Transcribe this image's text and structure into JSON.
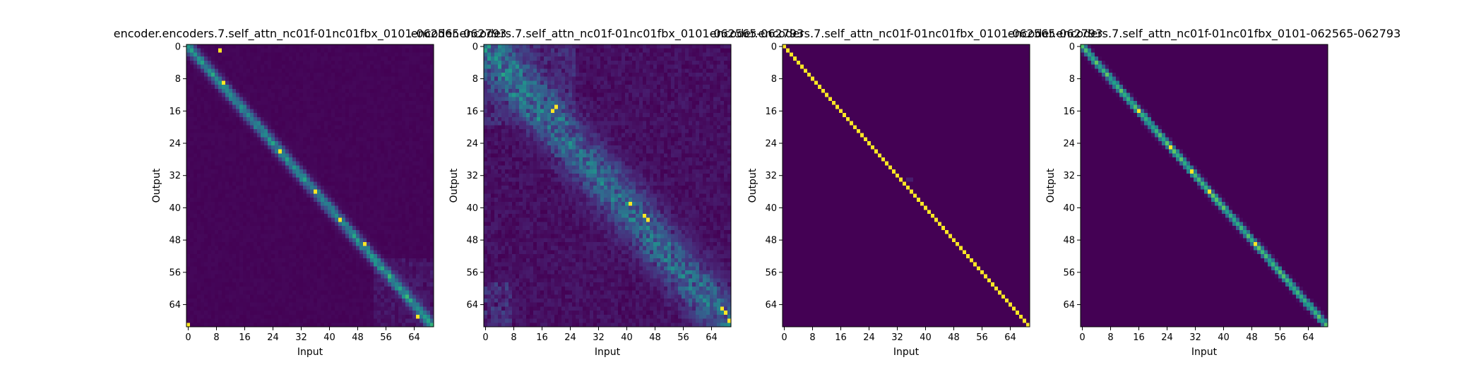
{
  "figure": {
    "background": "#ffffff",
    "colormap": "viridis"
  },
  "chart_data": [
    {
      "type": "heatmap",
      "title": "encoder.encoders.7.self_attn_nc01f-01nc01fbx_0101-062565-062793",
      "xlabel": "Input",
      "ylabel": "Output",
      "size": [
        70,
        70
      ],
      "xticks": [
        "0",
        "8",
        "16",
        "24",
        "32",
        "40",
        "48",
        "56",
        "64"
      ],
      "yticks": [
        "0",
        "8",
        "16",
        "24",
        "32",
        "40",
        "48",
        "56",
        "64"
      ],
      "pattern": "diagonal-wide",
      "peaks": [
        [
          1,
          9
        ],
        [
          9,
          10
        ],
        [
          26,
          26
        ],
        [
          36,
          36
        ],
        [
          43,
          43
        ],
        [
          49,
          50
        ],
        [
          67,
          65
        ],
        [
          69,
          0
        ]
      ]
    },
    {
      "type": "heatmap",
      "title": "encoder.encoders.7.self_attn_nc01f-01nc01fbx_0101-062565-062793",
      "xlabel": "Input",
      "ylabel": "Output",
      "size": [
        70,
        70
      ],
      "xticks": [
        "0",
        "8",
        "16",
        "24",
        "32",
        "40",
        "48",
        "56",
        "64"
      ],
      "yticks": [
        "0",
        "8",
        "16",
        "24",
        "32",
        "40",
        "48",
        "56",
        "64"
      ],
      "pattern": "diffuse",
      "peaks": [
        [
          15,
          20
        ],
        [
          16,
          19
        ],
        [
          39,
          41
        ],
        [
          42,
          45
        ],
        [
          43,
          46
        ],
        [
          65,
          67
        ],
        [
          66,
          68
        ],
        [
          68,
          69
        ]
      ]
    },
    {
      "type": "heatmap",
      "title": "encoder.encoders.7.self_attn_nc01f-01nc01fbx_0101-062565-062793",
      "xlabel": "Input",
      "ylabel": "Output",
      "size": [
        70,
        70
      ],
      "xticks": [
        "0",
        "8",
        "16",
        "24",
        "32",
        "40",
        "48",
        "56",
        "64"
      ],
      "yticks": [
        "0",
        "8",
        "16",
        "24",
        "32",
        "40",
        "48",
        "56",
        "64"
      ],
      "pattern": "identity",
      "peaks": []
    },
    {
      "type": "heatmap",
      "title": "encoder.encoders.7.self_attn_nc01f-01nc01fbx_0101-062565-062793",
      "xlabel": "Input",
      "ylabel": "Output",
      "size": [
        70,
        70
      ],
      "xticks": [
        "0",
        "8",
        "16",
        "24",
        "32",
        "40",
        "48",
        "56",
        "64"
      ],
      "yticks": [
        "0",
        "8",
        "16",
        "24",
        "32",
        "40",
        "48",
        "56",
        "64"
      ],
      "pattern": "diagonal-narrow",
      "peaks": [
        [
          16,
          16
        ],
        [
          25,
          25
        ],
        [
          31,
          31
        ],
        [
          36,
          36
        ],
        [
          49,
          49
        ]
      ]
    }
  ]
}
